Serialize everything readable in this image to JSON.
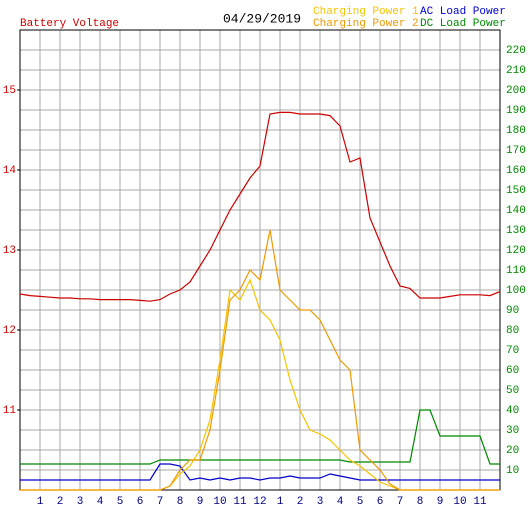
{
  "chart_data": {
    "type": "line",
    "title": "04/29/2019",
    "ylabel": "Battery Voltage",
    "x": [
      0,
      0.5,
      1,
      1.5,
      2,
      2.5,
      3,
      3.5,
      4,
      4.5,
      5,
      5.5,
      6,
      6.5,
      7,
      7.5,
      8,
      8.5,
      9,
      9.5,
      10,
      10.5,
      11,
      11.5,
      12,
      12.5,
      13,
      13.5,
      14,
      14.5,
      15,
      15.5,
      16,
      16.5,
      17,
      17.5,
      18,
      18.5,
      19,
      19.5,
      20,
      20.5,
      21,
      21.5,
      22,
      22.5,
      23,
      23.5,
      24
    ],
    "series": [
      {
        "name": "Battery Voltage",
        "color": "#cc0000",
        "axis": "y",
        "values": [
          12.45,
          12.43,
          12.42,
          12.41,
          12.4,
          12.4,
          12.39,
          12.39,
          12.38,
          12.38,
          12.38,
          12.38,
          12.37,
          12.36,
          12.38,
          12.45,
          12.5,
          12.6,
          12.8,
          13.0,
          13.25,
          13.5,
          13.7,
          13.9,
          14.05,
          14.7,
          14.72,
          14.72,
          14.7,
          14.7,
          14.7,
          14.68,
          14.55,
          14.1,
          14.15,
          13.4,
          13.1,
          12.8,
          12.55,
          12.52,
          12.4,
          12.4,
          12.4,
          12.42,
          12.44,
          12.44,
          12.44,
          12.43,
          12.48
        ]
      },
      {
        "name": "Charging Power 1",
        "color": "#f5c400",
        "axis": "y2",
        "values": [
          0,
          0,
          0,
          0,
          0,
          0,
          0,
          0,
          0,
          0,
          0,
          0,
          0,
          0,
          0,
          2,
          8,
          12,
          20,
          35,
          65,
          100,
          95,
          105,
          90,
          85,
          75,
          55,
          40,
          30,
          28,
          25,
          20,
          15,
          12,
          8,
          4,
          2,
          0,
          0,
          0,
          0,
          0,
          0,
          0,
          0,
          0,
          0,
          0
        ]
      },
      {
        "name": "Charging Power 2",
        "color": "#f09a00",
        "axis": "y2",
        "values": [
          0,
          0,
          0,
          0,
          0,
          0,
          0,
          0,
          0,
          0,
          0,
          0,
          0,
          0,
          0,
          2,
          10,
          15,
          15,
          30,
          60,
          95,
          100,
          110,
          105,
          130,
          100,
          95,
          90,
          90,
          85,
          75,
          65,
          60,
          20,
          15,
          10,
          3,
          0,
          0,
          0,
          0,
          0,
          0,
          0,
          0,
          0,
          0,
          0
        ]
      },
      {
        "name": "AC Load Power",
        "color": "#0000cc",
        "axis": "y2",
        "values": [
          5,
          5,
          5,
          5,
          5,
          5,
          5,
          5,
          5,
          5,
          5,
          5,
          5,
          5,
          13,
          13,
          12,
          5,
          6,
          5,
          6,
          5,
          6,
          6,
          5,
          6,
          6,
          7,
          6,
          6,
          6,
          8,
          7,
          6,
          5,
          5,
          5,
          5,
          5,
          5,
          5,
          5,
          5,
          5,
          5,
          5,
          5,
          5,
          5
        ]
      },
      {
        "name": "DC Load Power",
        "color": "#008800",
        "axis": "y2",
        "values": [
          13,
          13,
          13,
          13,
          13,
          13,
          13,
          13,
          13,
          13,
          13,
          13,
          13,
          13,
          15,
          15,
          15,
          15,
          15,
          15,
          15,
          15,
          15,
          15,
          15,
          15,
          15,
          15,
          15,
          15,
          15,
          15,
          15,
          14,
          14,
          14,
          14,
          14,
          14,
          14,
          40,
          40,
          27,
          27,
          27,
          27,
          27,
          13,
          13
        ]
      }
    ],
    "xlim": [
      0,
      24
    ],
    "xticks": [
      1,
      2,
      3,
      4,
      5,
      6,
      7,
      8,
      9,
      10,
      11,
      12,
      {
        "value": 13,
        "label": "1"
      },
      {
        "value": 14,
        "label": "2"
      },
      {
        "value": 15,
        "label": "3"
      },
      {
        "value": 16,
        "label": "4"
      },
      {
        "value": 17,
        "label": "5"
      },
      {
        "value": 18,
        "label": "6"
      },
      {
        "value": 19,
        "label": "7"
      },
      {
        "value": 20,
        "label": "8"
      },
      {
        "value": 21,
        "label": "9"
      },
      {
        "value": 22,
        "label": "10"
      },
      {
        "value": 23,
        "label": "11"
      }
    ],
    "ylim": [
      10,
      15.75
    ],
    "yticks": [
      11,
      12,
      13,
      14,
      15
    ],
    "y2lim": [
      0,
      230
    ],
    "y2ticks": [
      10,
      20,
      30,
      40,
      50,
      60,
      70,
      80,
      90,
      100,
      110,
      120,
      130,
      140,
      150,
      160,
      170,
      180,
      190,
      200,
      210,
      220
    ],
    "grid": true
  }
}
